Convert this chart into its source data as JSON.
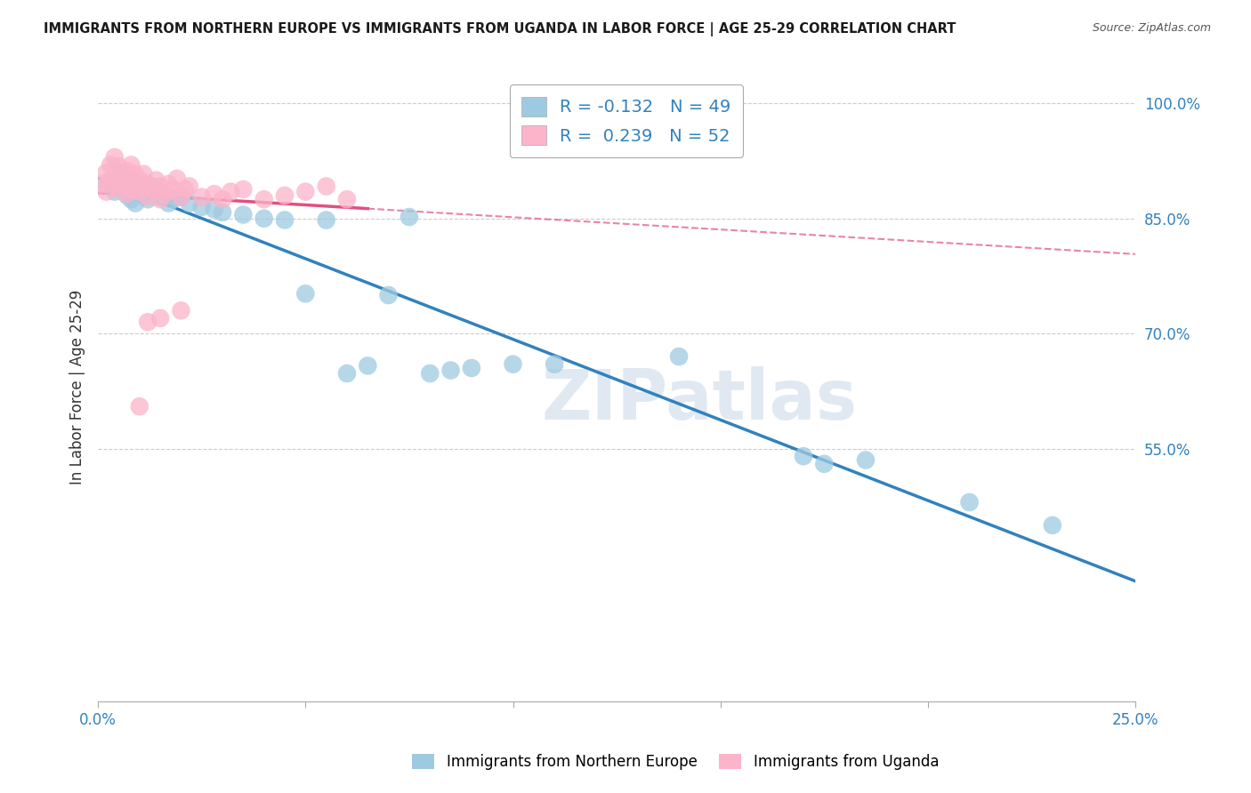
{
  "title": "IMMIGRANTS FROM NORTHERN EUROPE VS IMMIGRANTS FROM UGANDA IN LABOR FORCE | AGE 25-29 CORRELATION CHART",
  "source": "Source: ZipAtlas.com",
  "ylabel": "In Labor Force | Age 25-29",
  "xlim": [
    0.0,
    0.25
  ],
  "ylim": [
    0.22,
    1.04
  ],
  "xticks": [
    0.0,
    0.05,
    0.1,
    0.15,
    0.2,
    0.25
  ],
  "xticklabels": [
    "0.0%",
    "",
    "",
    "",
    "",
    "25.0%"
  ],
  "yticks": [
    0.25,
    0.55,
    0.7,
    0.85,
    1.0
  ],
  "yticklabels": [
    "",
    "55.0%",
    "70.0%",
    "85.0%",
    "100.0%"
  ],
  "legend_blue_label": "Immigrants from Northern Europe",
  "legend_pink_label": "Immigrants from Uganda",
  "R_blue": -0.132,
  "N_blue": 49,
  "R_pink": 0.239,
  "N_pink": 52,
  "blue_color": "#9ecae1",
  "pink_color": "#fbb4c9",
  "blue_line_color": "#3182bd",
  "pink_line_color": "#e05080",
  "blue_x": [
    0.002,
    0.003,
    0.004,
    0.004,
    0.005,
    0.005,
    0.006,
    0.006,
    0.007,
    0.007,
    0.008,
    0.008,
    0.009,
    0.009,
    0.01,
    0.01,
    0.011,
    0.012,
    0.013,
    0.014,
    0.015,
    0.016,
    0.017,
    0.018,
    0.02,
    0.022,
    0.025,
    0.028,
    0.03,
    0.035,
    0.04,
    0.045,
    0.05,
    0.055,
    0.06,
    0.065,
    0.07,
    0.075,
    0.08,
    0.085,
    0.09,
    0.1,
    0.11,
    0.14,
    0.17,
    0.175,
    0.185,
    0.21,
    0.23
  ],
  "blue_y": [
    0.895,
    0.9,
    0.885,
    0.905,
    0.89,
    0.91,
    0.888,
    0.895,
    0.892,
    0.88,
    0.875,
    0.9,
    0.888,
    0.87,
    0.885,
    0.895,
    0.88,
    0.875,
    0.892,
    0.883,
    0.878,
    0.88,
    0.87,
    0.875,
    0.878,
    0.87,
    0.865,
    0.862,
    0.858,
    0.855,
    0.85,
    0.848,
    0.752,
    0.848,
    0.648,
    0.658,
    0.75,
    0.852,
    0.648,
    0.652,
    0.655,
    0.66,
    0.66,
    0.67,
    0.54,
    0.53,
    0.535,
    0.48,
    0.45
  ],
  "pink_x": [
    0.001,
    0.002,
    0.002,
    0.003,
    0.003,
    0.004,
    0.004,
    0.004,
    0.005,
    0.005,
    0.005,
    0.006,
    0.006,
    0.007,
    0.007,
    0.007,
    0.008,
    0.008,
    0.008,
    0.009,
    0.009,
    0.01,
    0.01,
    0.011,
    0.011,
    0.012,
    0.012,
    0.013,
    0.014,
    0.015,
    0.015,
    0.016,
    0.017,
    0.018,
    0.019,
    0.02,
    0.021,
    0.022,
    0.025,
    0.028,
    0.03,
    0.032,
    0.035,
    0.04,
    0.045,
    0.05,
    0.055,
    0.06,
    0.015,
    0.02,
    0.012,
    0.01
  ],
  "pink_y": [
    0.895,
    0.91,
    0.885,
    0.9,
    0.92,
    0.895,
    0.915,
    0.93,
    0.888,
    0.902,
    0.918,
    0.895,
    0.91,
    0.882,
    0.898,
    0.912,
    0.888,
    0.905,
    0.92,
    0.892,
    0.908,
    0.885,
    0.9,
    0.892,
    0.908,
    0.878,
    0.895,
    0.888,
    0.9,
    0.875,
    0.892,
    0.882,
    0.895,
    0.888,
    0.902,
    0.878,
    0.888,
    0.892,
    0.878,
    0.882,
    0.875,
    0.885,
    0.888,
    0.875,
    0.88,
    0.885,
    0.892,
    0.875,
    0.72,
    0.73,
    0.715,
    0.605
  ],
  "pink_line_x": [
    0.0,
    0.085
  ],
  "watermark": "ZIPatlas",
  "background_color": "#ffffff",
  "grid_color": "#cccccc",
  "grid_linestyle": "--"
}
